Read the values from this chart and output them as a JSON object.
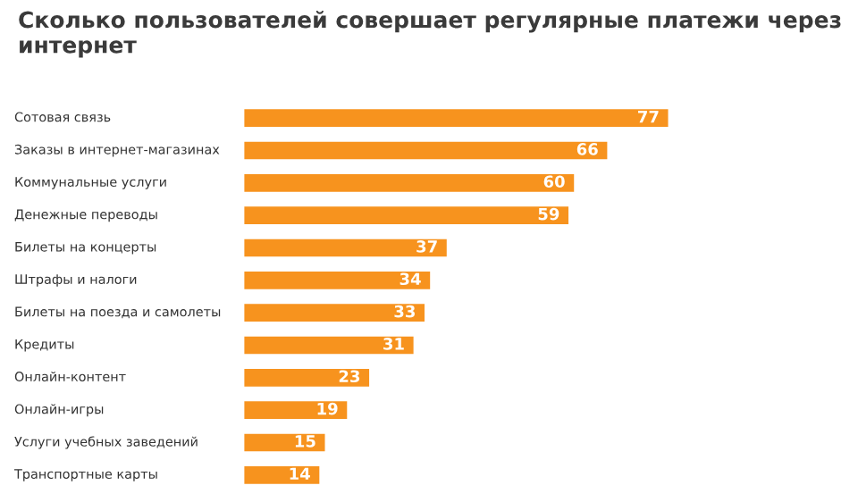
{
  "chart_data": {
    "type": "bar",
    "orientation": "horizontal",
    "title": "Сколько пользователей совершает регулярные платежи через интернет",
    "categories": [
      "Сотовая связь",
      "Заказы в интернет-магазинах",
      "Коммунальные услуги",
      "Денежные переводы",
      "Билеты на концерты",
      "Штрафы и налоги",
      "Билеты на поезда и самолеты",
      "Кредиты",
      "Онлайн-контент",
      "Онлайн-игры",
      "Услуги учебных заведений",
      "Транспортные карты"
    ],
    "values": [
      77,
      66,
      60,
      59,
      37,
      34,
      33,
      31,
      23,
      19,
      15,
      14
    ],
    "color": "#f7931e",
    "data_labels": true
  }
}
